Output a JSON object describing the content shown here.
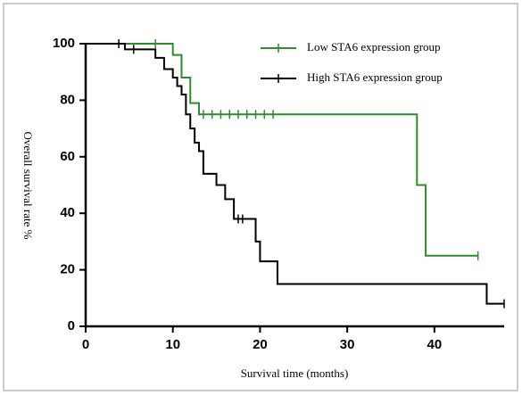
{
  "chart_data": {
    "type": "survival",
    "xlabel": "Survival time (months)",
    "ylabel": "Overall survival rate %",
    "xlim": [
      0,
      48
    ],
    "ylim": [
      0,
      100
    ],
    "xticks": [
      0,
      10,
      20,
      30,
      40
    ],
    "yticks": [
      0,
      20,
      40,
      60,
      80,
      100
    ],
    "legend": "upper right",
    "series": [
      {
        "name": "Low STA6 expression group",
        "color": "#2e8b2e",
        "x": [
          0,
          10,
          11,
          12,
          13,
          38,
          39,
          45
        ],
        "values": [
          100,
          96,
          88,
          79,
          75,
          50,
          25,
          25
        ],
        "censor_x": [
          8,
          13.5,
          14.5,
          15.5,
          16.5,
          17.5,
          18.5,
          19.5,
          20.5,
          21.5,
          45
        ],
        "censor_values": [
          100,
          75,
          75,
          75,
          75,
          75,
          75,
          75,
          75,
          75,
          25
        ]
      },
      {
        "name": "High STA6 expression group",
        "color": "#000000",
        "x": [
          0,
          4.5,
          8,
          9,
          10,
          10.5,
          11,
          11.5,
          12,
          12.5,
          13,
          13.5,
          15,
          16,
          17,
          19.5,
          20,
          22,
          46,
          48
        ],
        "values": [
          100,
          98,
          95,
          91,
          88,
          85,
          82,
          75,
          70,
          65,
          62,
          54,
          50,
          45,
          38,
          30,
          23,
          15,
          8,
          8
        ],
        "censor_x": [
          3.8,
          5.5,
          17.5,
          18,
          48
        ],
        "censor_values": [
          100,
          98,
          38,
          38,
          8
        ]
      }
    ]
  }
}
